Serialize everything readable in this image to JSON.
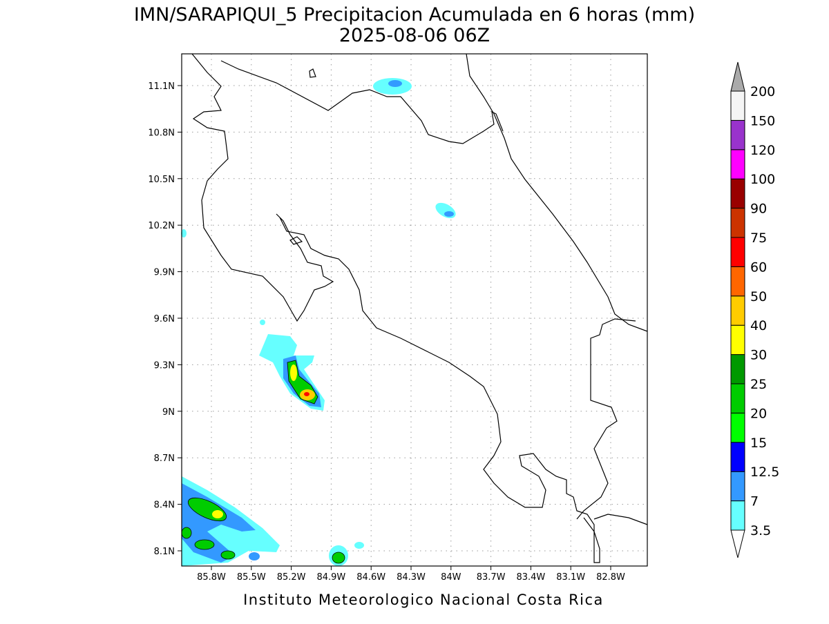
{
  "header": {
    "title": "IMN/SARAPIQUI_5 Precipitacion Acumulada en 6 horas (mm)",
    "subtitle": "2025-08-06 06Z"
  },
  "map": {
    "x_labels": [
      "85.8W",
      "85.5W",
      "85.2W",
      "84.9W",
      "84.6W",
      "84.3W",
      "84W",
      "83.7W",
      "83.4W",
      "83.1W",
      "82.8W"
    ],
    "y_labels": [
      "11.1N",
      "10.8N",
      "10.5N",
      "10.2N",
      "9.9N",
      "9.6N",
      "9.3N",
      "9N",
      "8.7N",
      "8.4N",
      "8.1N"
    ],
    "grid": true
  },
  "colorbar": {
    "levels": [
      3.5,
      7,
      12.5,
      15,
      20,
      25,
      30,
      40,
      50,
      60,
      75,
      90,
      100,
      120,
      150,
      200
    ],
    "colors": [
      "#66ffff",
      "#3399ff",
      "#0000ff",
      "#00ff00",
      "#00cc00",
      "#009900",
      "#ffff00",
      "#ffcc00",
      "#ff6600",
      "#ff0000",
      "#cc3300",
      "#990000",
      "#ff00ff",
      "#9933cc",
      "#f5f5f5"
    ],
    "under_color": "#ffffff",
    "over_color": "#aaaaaa"
  },
  "footer": {
    "credit": "Instituto Meteorologico Nacional Costa Rica"
  }
}
